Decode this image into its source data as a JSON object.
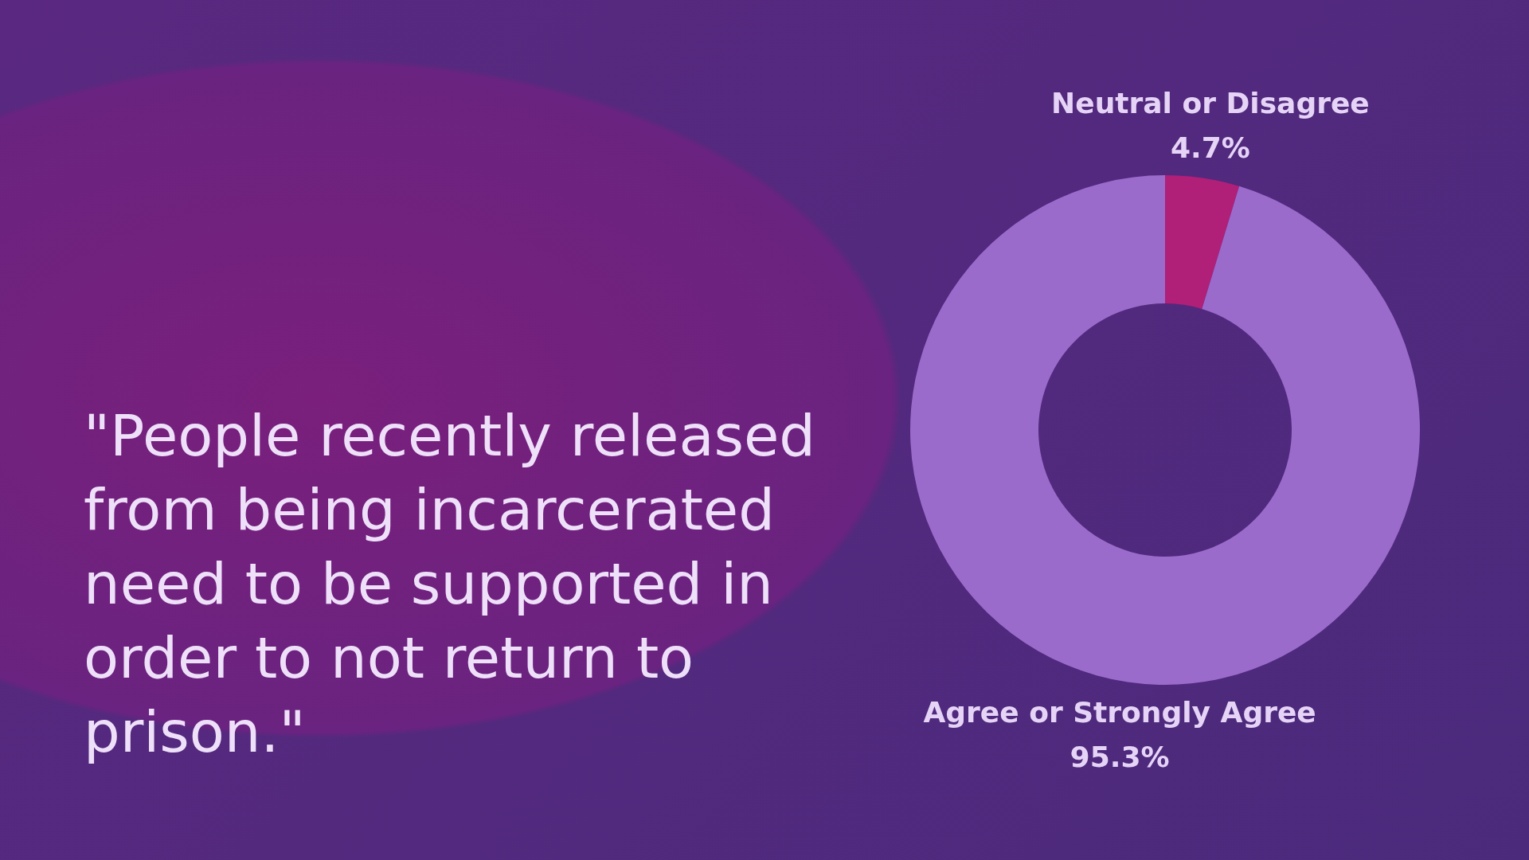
{
  "chart_data": {
    "type": "donut",
    "title": "\"People recently released from being incarcerated need to be supported in order to not return to prison.\"",
    "categories": [
      "Neutral or Disagree",
      "Agree or Strongly Agree"
    ],
    "values": [
      4.7,
      95.3
    ],
    "colors": [
      "#b01f78",
      "#9b6bcc"
    ],
    "value_labels": [
      "4.7%",
      "95.3%"
    ],
    "legend": false
  }
}
